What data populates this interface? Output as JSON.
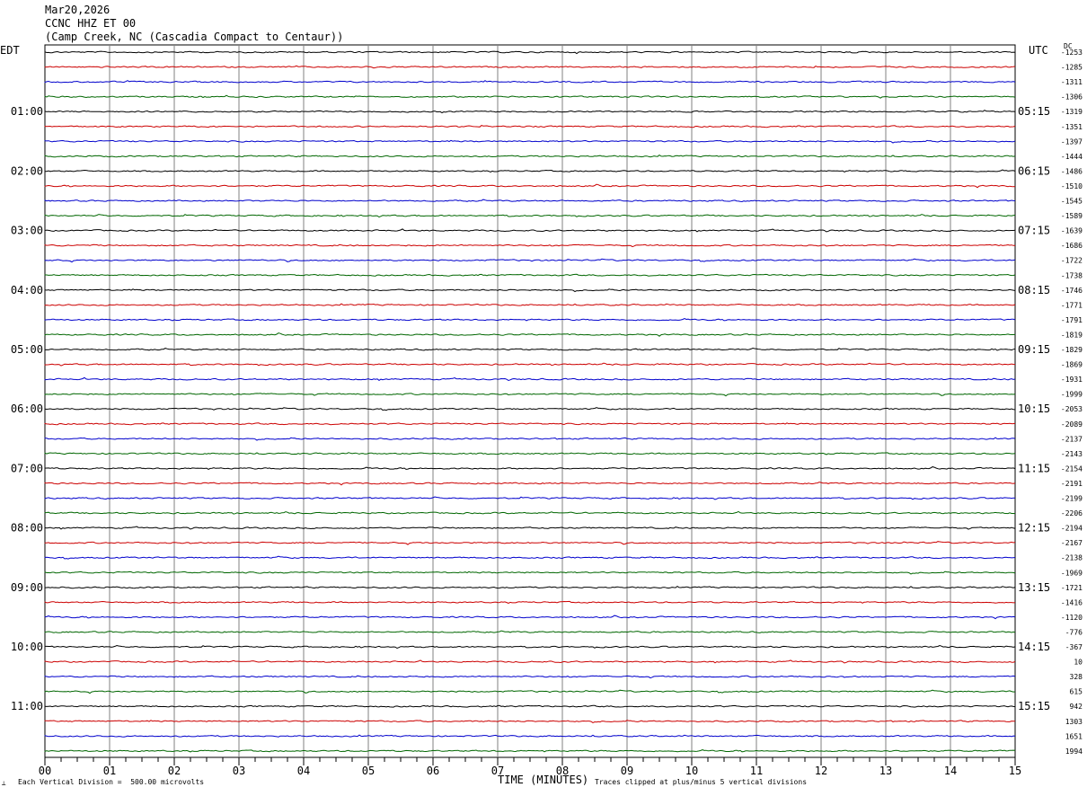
{
  "header": {
    "date": "Mar20,2026",
    "station": "CCNC HHZ ET 00",
    "location": "(Camp Creek, NC (Cascadia Compact to Centaur))"
  },
  "corners": {
    "left_zone": "EDT",
    "right_zone": "UTC",
    "offset_label": "DC"
  },
  "footer": {
    "scale_note": "Each Vertical Division =  500.00 microvolts",
    "x_title": "TIME (MINUTES)",
    "clip_note": "Traces clipped at plus/minus 5 vertical divisions",
    "logo_mark": "┴"
  },
  "chart_data": {
    "type": "line",
    "title": "CCNC HHZ ET 00",
    "xlabel": "TIME (MINUTES)",
    "ylabel": "",
    "xlim": [
      0,
      15
    ],
    "x_ticks": [
      "00",
      "01",
      "02",
      "03",
      "04",
      "05",
      "06",
      "07",
      "08",
      "09",
      "10",
      "11",
      "12",
      "13",
      "14",
      "15"
    ],
    "rows_per_hour": 4,
    "trace_colors": [
      "#000000",
      "#cc0000",
      "#0000cc",
      "#006600"
    ],
    "grid": true,
    "left_hour_labels": [
      "01:00",
      "02:00",
      "03:00",
      "04:00",
      "05:00",
      "06:00",
      "07:00",
      "08:00",
      "09:00",
      "10:00",
      "11:00"
    ],
    "right_hour_labels": [
      "05:15",
      "06:15",
      "07:15",
      "08:15",
      "09:15",
      "10:15",
      "11:15",
      "12:15",
      "13:15",
      "14:15",
      "15:15"
    ],
    "dc_offsets": [
      "-1253",
      "-1285",
      "-1311",
      "-1306",
      "-1319",
      "-1351",
      "-1397",
      "-1444",
      "-1486",
      "-1510",
      "-1545",
      "-1589",
      "-1639",
      "-1686",
      "-1722",
      "-1738",
      "-1746",
      "-1771",
      "-1791",
      "-1819",
      "-1829",
      "-1869",
      "-1931",
      "-1999",
      "-2053",
      "-2089",
      "-2137",
      "-2143",
      "-2154",
      "-2191",
      "-2199",
      "-2206",
      "-2194",
      "-2167",
      "-2138",
      "-1969",
      "-1721",
      "-1416",
      "-1120",
      "-776",
      "-367",
      "10",
      "328",
      "615",
      "942",
      "1303",
      "1651",
      "1994"
    ]
  }
}
